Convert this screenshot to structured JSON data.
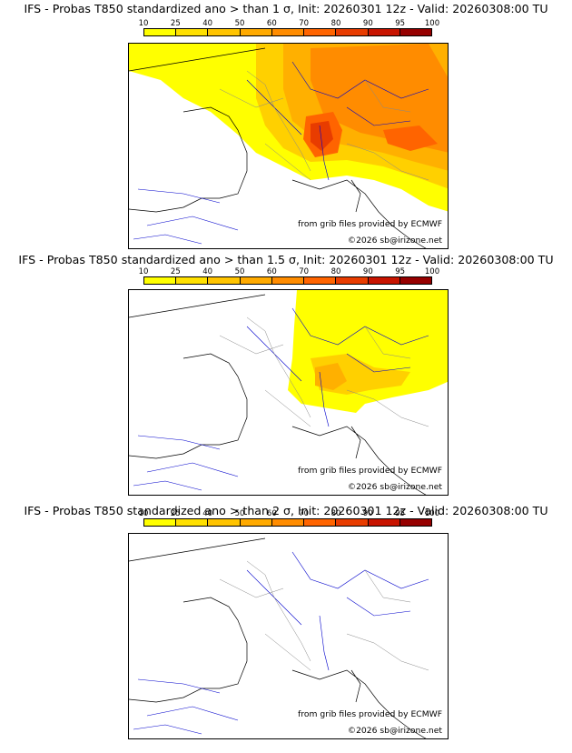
{
  "colorbar": {
    "ticks": [
      "10",
      "25",
      "40",
      "50",
      "60",
      "70",
      "80",
      "90",
      "95",
      "100"
    ],
    "colors": [
      "#ffff00",
      "#ffe000",
      "#ffc400",
      "#ffaa00",
      "#ff8c00",
      "#ff6400",
      "#e83c00",
      "#c81400",
      "#960000"
    ]
  },
  "panels": [
    {
      "title": "IFS - Probas T850  standardized ano > than 1 σ, Init: 20260301 12z - Valid: 20260308:00 TU",
      "credit1": "from grib files provided by ECMWF",
      "credit2": "©2026 sb@irizone.net"
    },
    {
      "title": "IFS - Probas T850  standardized ano > than 1.5 σ, Init: 20260301 12z - Valid: 20260308:00 TU",
      "credit1": "from grib files provided by ECMWF",
      "credit2": "©2026 sb@irizone.net"
    },
    {
      "title": "IFS - Probas T850  standardized ano > than 2 σ, Init: 20260301 12z - Valid: 20260308:00 TU",
      "credit1": "from grib files provided by ECMWF",
      "credit2": "©2026 sb@irizone.net"
    }
  ]
}
